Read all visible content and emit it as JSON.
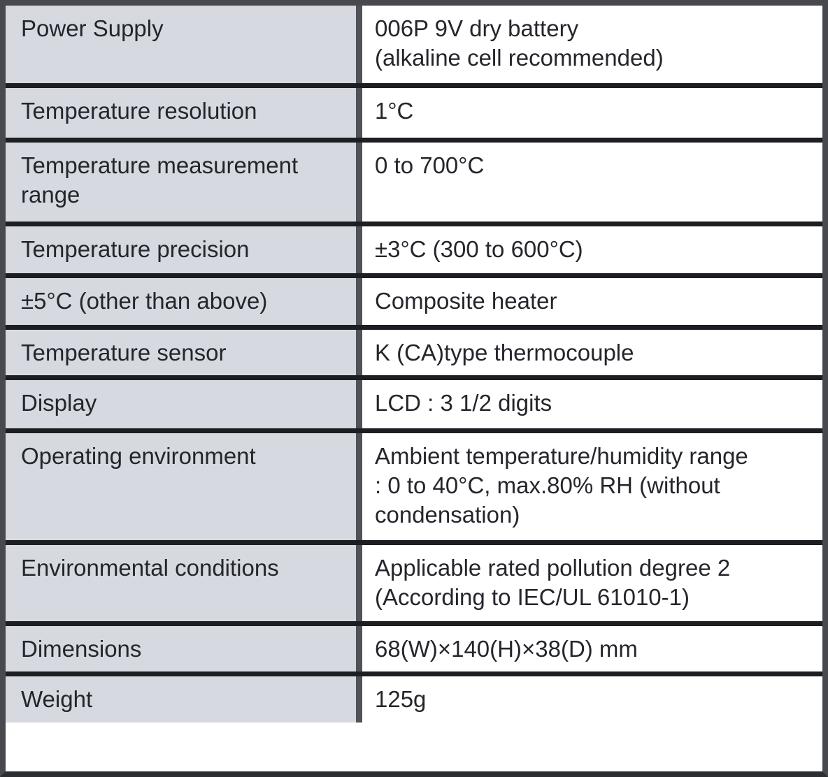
{
  "colors": {
    "label_bg": "#d6d9e0",
    "value_bg": "#ffffff",
    "frame_border": "#47494f",
    "col_divider": "#50525a",
    "row_divider": "#1d1e22",
    "text": "#24262c"
  },
  "table": {
    "rows": [
      {
        "label": "Power Supply",
        "value": "006P 9V dry battery\n(alkaline cell recommended)"
      },
      {
        "label": "Temperature resolution",
        "value": "1°C"
      },
      {
        "label": "Temperature measurement\nrange",
        "value": "0 to 700°C"
      },
      {
        "label": "Temperature precision",
        "value": "±3°C (300 to 600°C)"
      },
      {
        "label": "±5°C (other than above)",
        "value": "Composite heater"
      },
      {
        "label": "Temperature sensor",
        "value": "K (CA)type thermocouple"
      },
      {
        "label": "Display",
        "value": "LCD : 3 1/2 digits"
      },
      {
        "label": "Operating environment",
        "value": "Ambient temperature/humidity range\n: 0 to 40°C, max.80% RH (without\ncondensation)"
      },
      {
        "label": "Environmental conditions",
        "value": "Applicable rated pollution degree 2\n(According to IEC/UL 61010-1)"
      },
      {
        "label": "Dimensions",
        "value": "68(W)×140(H)×38(D) mm"
      },
      {
        "label": "Weight",
        "value": "125g"
      }
    ]
  }
}
